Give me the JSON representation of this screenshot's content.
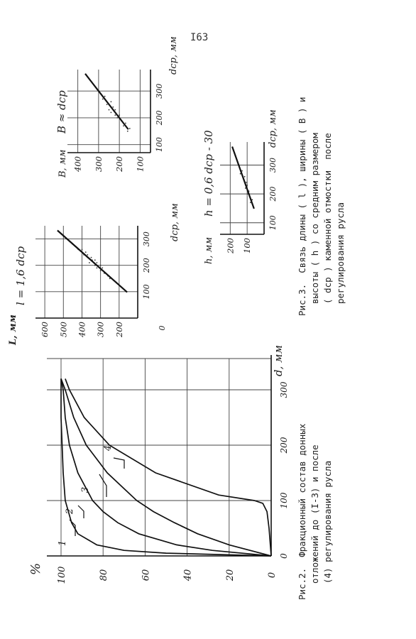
{
  "page_number": "I63",
  "fig2": {
    "caption": [
      "Рис.2.  Фракционный состав донных",
      "отложений до (I-3) и после",
      "(4) регулирования русла"
    ],
    "y_unit": "%",
    "y_ticks": [
      "0",
      "20",
      "40",
      "60",
      "80",
      "100"
    ],
    "x_ticks": [
      "0",
      "100",
      "200",
      "300"
    ],
    "x_unit": "d, мм",
    "curve_labels": [
      "1",
      "2",
      "3",
      "4"
    ]
  },
  "fig3": {
    "caption": [
      "Рис.3.  Связь длины ( l ), ширины ( B ) и",
      "высоты ( h ) со средним размером",
      "( dср ) каменной отмостки  после",
      "регулирования русла"
    ],
    "l_plot": {
      "y_label": "L, мм",
      "y_ticks": [
        "200",
        "300",
        "400",
        "500",
        "600"
      ],
      "x_ticks": [
        "0",
        "100",
        "200",
        "300"
      ],
      "x_label": "dср, мм",
      "equation": "l = 1,6 dср"
    },
    "b_plot": {
      "y_label": "B, мм",
      "y_ticks": [
        "100",
        "200",
        "300",
        "400"
      ],
      "x_ticks": [
        "100",
        "200",
        "300"
      ],
      "x_label": "dср, мм",
      "equation": "B ≈ dср"
    },
    "h_plot": {
      "y_label": "h, мм",
      "y_ticks": [
        "100",
        "200"
      ],
      "x_ticks": [
        "100",
        "200",
        "300"
      ],
      "x_label": "dср, мм",
      "equation": "h = 0,6 dср - 30"
    }
  },
  "chart_data": [
    {
      "type": "line",
      "xlabel": "d, мм",
      "ylabel": "%",
      "xlim": [
        0,
        320
      ],
      "ylim": [
        0,
        100
      ],
      "series": [
        {
          "name": "1",
          "x": [
            0,
            5,
            10,
            20,
            40,
            60,
            100,
            150,
            200,
            250,
            300,
            320
          ],
          "y": [
            0,
            50,
            70,
            83,
            92,
            95,
            98,
            99,
            99.5,
            100,
            100,
            100
          ]
        },
        {
          "name": "2",
          "x": [
            0,
            10,
            20,
            40,
            60,
            80,
            100,
            150,
            200,
            250,
            300,
            320
          ],
          "y": [
            0,
            28,
            45,
            63,
            73,
            80,
            85,
            92,
            96,
            98,
            99,
            100
          ]
        },
        {
          "name": "3",
          "x": [
            0,
            20,
            40,
            60,
            80,
            100,
            150,
            200,
            250,
            300,
            320
          ],
          "y": [
            0,
            20,
            35,
            46,
            56,
            64,
            78,
            88,
            94,
            98,
            100
          ]
        },
        {
          "name": "4",
          "x": [
            0,
            50,
            80,
            95,
            100,
            110,
            150,
            200,
            250,
            300,
            320
          ],
          "y": [
            0,
            1,
            2,
            4,
            8,
            25,
            55,
            77,
            89,
            96,
            98
          ]
        }
      ]
    },
    {
      "type": "scatter",
      "xlabel": "dср, мм",
      "ylabel": "L, мм",
      "xlim": [
        0,
        350
      ],
      "ylim": [
        100,
        650
      ],
      "line": {
        "equation": "l = 1,6 dср",
        "slope": 1.6,
        "intercept": 0
      },
      "points": [
        [
          200,
          300
        ],
        [
          210,
          320
        ],
        [
          220,
          345
        ],
        [
          230,
          370
        ],
        [
          240,
          390
        ],
        [
          250,
          400
        ],
        [
          260,
          420
        ],
        [
          270,
          430
        ],
        [
          280,
          450
        ],
        [
          200,
          330
        ],
        [
          180,
          300
        ],
        [
          190,
          290
        ],
        [
          160,
          260
        ],
        [
          170,
          280
        ],
        [
          150,
          250
        ],
        [
          230,
          350
        ],
        [
          250,
          380
        ],
        [
          210,
          360
        ],
        [
          190,
          320
        ],
        [
          260,
          400
        ],
        [
          220,
          330
        ],
        [
          240,
          370
        ]
      ]
    },
    {
      "type": "scatter",
      "xlabel": "dср, мм",
      "ylabel": "B, мм",
      "xlim": [
        70,
        380
      ],
      "ylim": [
        50,
        450
      ],
      "line": {
        "equation": "B ≈ dср",
        "slope": 1,
        "intercept": 0
      },
      "points": [
        [
          150,
          160
        ],
        [
          170,
          180
        ],
        [
          180,
          170
        ],
        [
          200,
          210
        ],
        [
          210,
          200
        ],
        [
          220,
          240
        ],
        [
          230,
          220
        ],
        [
          250,
          260
        ],
        [
          260,
          240
        ],
        [
          270,
          280
        ],
        [
          240,
          230
        ],
        [
          190,
          190
        ],
        [
          160,
          150
        ],
        [
          280,
          270
        ],
        [
          230,
          250
        ],
        [
          210,
          220
        ]
      ]
    },
    {
      "type": "scatter",
      "xlabel": "dср, мм",
      "ylabel": "h, мм",
      "xlim": [
        60,
        380
      ],
      "ylim": [
        0,
        260
      ],
      "line": {
        "equation": "h = 0,6 dср - 30",
        "slope": 0.6,
        "intercept": -30
      },
      "points": [
        [
          150,
          60
        ],
        [
          170,
          80
        ],
        [
          180,
          70
        ],
        [
          200,
          95
        ],
        [
          210,
          90
        ],
        [
          220,
          110
        ],
        [
          230,
          100
        ],
        [
          250,
          120
        ],
        [
          260,
          115
        ],
        [
          270,
          140
        ],
        [
          240,
          105
        ],
        [
          190,
          85
        ],
        [
          280,
          130
        ],
        [
          300,
          150
        ]
      ]
    }
  ]
}
